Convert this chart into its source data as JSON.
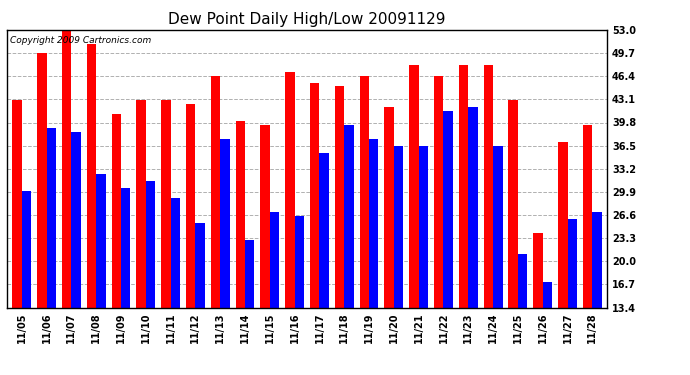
{
  "title": "Dew Point Daily High/Low 20091129",
  "copyright": "Copyright 2009 Cartronics.com",
  "categories": [
    "11/05",
    "11/06",
    "11/07",
    "11/08",
    "11/09",
    "11/10",
    "11/11",
    "11/12",
    "11/13",
    "11/14",
    "11/15",
    "11/16",
    "11/17",
    "11/18",
    "11/19",
    "11/20",
    "11/21",
    "11/22",
    "11/23",
    "11/24",
    "11/25",
    "11/26",
    "11/27",
    "11/28"
  ],
  "highs": [
    43.0,
    49.7,
    53.0,
    51.0,
    41.0,
    43.0,
    43.0,
    42.5,
    46.4,
    40.0,
    39.5,
    47.0,
    45.5,
    45.0,
    46.4,
    42.0,
    48.0,
    46.4,
    48.0,
    48.0,
    43.0,
    24.0,
    37.0,
    39.5
  ],
  "lows": [
    30.0,
    39.0,
    38.5,
    32.5,
    30.5,
    31.5,
    29.0,
    25.5,
    37.5,
    23.0,
    27.0,
    26.5,
    35.5,
    39.5,
    37.5,
    36.5,
    36.5,
    41.5,
    42.0,
    36.5,
    21.0,
    17.0,
    26.0,
    27.0
  ],
  "high_color": "#ff0000",
  "low_color": "#0000ff",
  "bg_color": "#ffffff",
  "plot_bg_color": "#ffffff",
  "grid_color": "#b0b0b0",
  "ylim_min": 13.4,
  "ylim_max": 53.0,
  "yticks": [
    13.4,
    16.7,
    20.0,
    23.3,
    26.6,
    29.9,
    33.2,
    36.5,
    39.8,
    43.1,
    46.4,
    49.7,
    53.0
  ],
  "bar_width": 0.38,
  "title_fontsize": 11,
  "tick_fontsize": 7,
  "copyright_fontsize": 6.5
}
